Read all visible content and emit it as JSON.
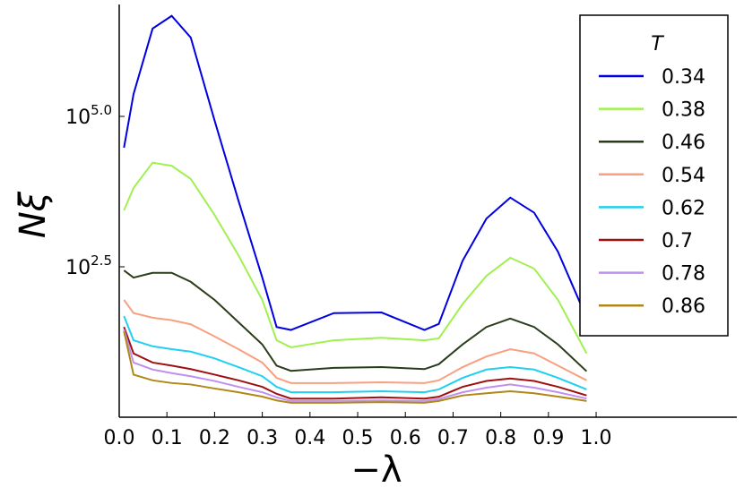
{
  "chart_data": {
    "type": "line",
    "xlabel": "−λ",
    "ylabel": "Nξ",
    "legend_title": "T",
    "legend_position": "upper right",
    "log_y": true,
    "xlim": [
      0,
      1.295
    ],
    "ylim": [
      1,
      7244000
    ],
    "xticks": [
      {
        "value": 0,
        "label": "0.0"
      },
      0.1,
      0.2,
      0.3,
      0.4,
      0.5,
      0.6,
      0.7,
      0.8,
      0.9,
      {
        "value": 1,
        "label": "1.0"
      }
    ],
    "yticks": [
      {
        "value": 316.23,
        "label": "10^2.5"
      },
      {
        "value": 100000,
        "label": "10^5.0"
      }
    ],
    "x": [
      0.01,
      0.03,
      0.07,
      0.11,
      0.15,
      0.2,
      0.25,
      0.3,
      0.33,
      0.36,
      0.45,
      0.55,
      0.64,
      0.67,
      0.72,
      0.77,
      0.82,
      0.87,
      0.92,
      0.98
    ],
    "series": [
      {
        "name": "0.34",
        "color": "#0000e0",
        "values": [
          30200,
          234000,
          2880000,
          4680000,
          2040000,
          85100,
          3980,
          209,
          31.6,
          28.2,
          53.7,
          55,
          28.2,
          35.5,
          398,
          2000,
          4470,
          2510,
          562,
          44.7
        ]
      },
      {
        "name": "0.38",
        "color": "#a0f050",
        "values": [
          2750,
          6460,
          17000,
          15100,
          9120,
          2290,
          490,
          89,
          19,
          14.5,
          19,
          20.9,
          19,
          20.4,
          75.9,
          224,
          447,
          295,
          89,
          11.5
        ]
      },
      {
        "name": "0.46",
        "color": "#2a3d1a",
        "values": [
          275,
          209,
          251,
          251,
          178,
          89,
          38,
          16.2,
          7.2,
          5.9,
          6.6,
          6.8,
          6.3,
          7.6,
          16.2,
          31.6,
          43.7,
          31.6,
          16.2,
          5.8
        ]
      },
      {
        "name": "0.54",
        "color": "#f8a080",
        "values": [
          89,
          54,
          45,
          41,
          35,
          22,
          13.5,
          8.1,
          4.5,
          3.7,
          3.7,
          3.8,
          3.7,
          4.1,
          6.8,
          10.2,
          13.5,
          11.5,
          7.2,
          4.1
        ]
      },
      {
        "name": "0.62",
        "color": "#20d0f0",
        "values": [
          48,
          19,
          15.1,
          13.5,
          12.3,
          9.5,
          6.8,
          4.8,
          3.2,
          2.6,
          2.6,
          2.7,
          2.6,
          2.9,
          4.5,
          6.2,
          6.8,
          6.2,
          4.5,
          2.9
        ]
      },
      {
        "name": "0.7",
        "color": "#a01010",
        "values": [
          31.6,
          11.5,
          8.1,
          7.2,
          6.3,
          5.1,
          4.1,
          3.2,
          2.45,
          2.04,
          2.04,
          2.14,
          2.04,
          2.19,
          3.2,
          4.0,
          4.4,
          4.0,
          3.2,
          2.3
        ]
      },
      {
        "name": "0.78",
        "color": "#c090f0",
        "values": [
          28.8,
          8.1,
          6.2,
          5.4,
          4.8,
          4.0,
          3.2,
          2.6,
          2.14,
          1.86,
          1.86,
          1.9,
          1.86,
          2.0,
          2.6,
          3.1,
          3.5,
          3.1,
          2.6,
          2.04
        ]
      },
      {
        "name": "0.86",
        "color": "#b08818",
        "values": [
          26.9,
          5.1,
          4.1,
          3.7,
          3.5,
          3.0,
          2.6,
          2.2,
          1.9,
          1.74,
          1.74,
          1.78,
          1.74,
          1.86,
          2.3,
          2.5,
          2.7,
          2.5,
          2.2,
          1.86
        ]
      }
    ]
  }
}
